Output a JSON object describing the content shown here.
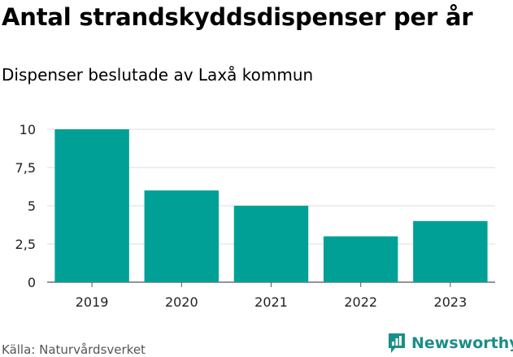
{
  "header": {
    "title": "Antal strandskyddsdispenser per år",
    "subtitle": "Dispenser beslutade av Laxå kommun"
  },
  "footer": {
    "source": "Källa: Naturvårdsverket",
    "brand": "Newsworthy"
  },
  "colors": {
    "bar": "#00a096",
    "grid": "#dddddd",
    "brand": "#1a8e88"
  },
  "chart_data": {
    "type": "bar",
    "title": "Antal strandskyddsdispenser per år",
    "subtitle": "Dispenser beslutade av Laxå kommun",
    "xlabel": "",
    "ylabel": "",
    "categories": [
      "2019",
      "2020",
      "2021",
      "2022",
      "2023"
    ],
    "values": [
      10,
      6,
      5,
      3,
      4
    ],
    "ylim": [
      0,
      10
    ],
    "yticks": [
      0,
      2.5,
      5,
      7.5,
      10
    ],
    "ytick_labels": [
      "0",
      "2,5",
      "5",
      "7,5",
      "10"
    ],
    "grid": true,
    "legend": "none"
  }
}
